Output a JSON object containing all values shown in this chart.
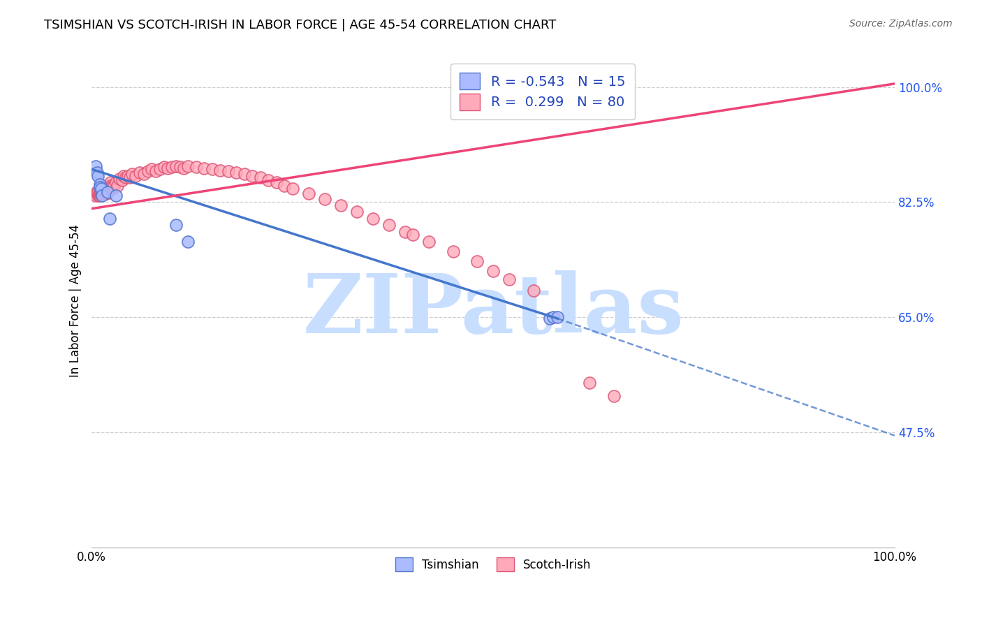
{
  "title": "TSIMSHIAN VS SCOTCH-IRISH IN LABOR FORCE | AGE 45-54 CORRELATION CHART",
  "source": "Source: ZipAtlas.com",
  "ylabel": "In Labor Force | Age 45-54",
  "yticks": [
    0.475,
    0.65,
    0.825,
    1.0
  ],
  "ytick_labels": [
    "47.5%",
    "65.0%",
    "82.5%",
    "100.0%"
  ],
  "xmin": 0.0,
  "xmax": 1.0,
  "ymin": 0.3,
  "ymax": 1.05,
  "tsimshian_R": -0.543,
  "tsimshian_N": 15,
  "scotchirish_R": 0.299,
  "scotchirish_N": 80,
  "tsimshian_color": "#aabbff",
  "scotchirish_color": "#ffaabb",
  "tsimshian_edge_color": "#5577cc",
  "scotchirish_edge_color": "#dd5577",
  "tsimshian_line_color": "#4477cc",
  "scotchirish_line_color": "#ee4477",
  "watermark_color": "#c8deff",
  "tsimshian_x": [
    0.005,
    0.007,
    0.008,
    0.01,
    0.01,
    0.012,
    0.013,
    0.02,
    0.022,
    0.03,
    0.105,
    0.12,
    0.57,
    0.575,
    0.58
  ],
  "tsimshian_y": [
    0.88,
    0.87,
    0.865,
    0.852,
    0.848,
    0.845,
    0.835,
    0.84,
    0.8,
    0.835,
    0.79,
    0.765,
    0.648,
    0.65,
    0.65
  ],
  "blue_line_x0": 0.0,
  "blue_line_y0": 0.875,
  "blue_line_x1": 0.58,
  "blue_line_y1": 0.648,
  "blue_line_x2": 1.0,
  "blue_line_y2": 0.47,
  "pink_line_x0": 0.0,
  "pink_line_y0": 0.815,
  "pink_line_x1": 1.0,
  "pink_line_y1": 1.005,
  "scotchirish_x": [
    0.005,
    0.006,
    0.007,
    0.008,
    0.008,
    0.009,
    0.009,
    0.01,
    0.01,
    0.01,
    0.011,
    0.012,
    0.013,
    0.013,
    0.014,
    0.015,
    0.015,
    0.016,
    0.017,
    0.018,
    0.019,
    0.02,
    0.022,
    0.023,
    0.024,
    0.025,
    0.026,
    0.028,
    0.03,
    0.032,
    0.035,
    0.038,
    0.04,
    0.042,
    0.045,
    0.048,
    0.05,
    0.055,
    0.06,
    0.065,
    0.07,
    0.075,
    0.08,
    0.085,
    0.09,
    0.095,
    0.1,
    0.105,
    0.11,
    0.115,
    0.12,
    0.13,
    0.14,
    0.15,
    0.16,
    0.17,
    0.18,
    0.19,
    0.2,
    0.21,
    0.22,
    0.23,
    0.24,
    0.25,
    0.27,
    0.29,
    0.31,
    0.33,
    0.35,
    0.37,
    0.39,
    0.4,
    0.42,
    0.45,
    0.48,
    0.5,
    0.52,
    0.55,
    0.62,
    0.65
  ],
  "scotchirish_y": [
    0.835,
    0.84,
    0.838,
    0.836,
    0.84,
    0.835,
    0.838,
    0.835,
    0.838,
    0.84,
    0.838,
    0.837,
    0.84,
    0.842,
    0.838,
    0.842,
    0.845,
    0.84,
    0.85,
    0.845,
    0.838,
    0.842,
    0.85,
    0.855,
    0.85,
    0.848,
    0.845,
    0.85,
    0.855,
    0.85,
    0.86,
    0.858,
    0.865,
    0.862,
    0.865,
    0.862,
    0.868,
    0.865,
    0.87,
    0.868,
    0.872,
    0.875,
    0.872,
    0.875,
    0.878,
    0.876,
    0.878,
    0.88,
    0.878,
    0.876,
    0.88,
    0.878,
    0.876,
    0.875,
    0.873,
    0.872,
    0.87,
    0.868,
    0.865,
    0.862,
    0.858,
    0.855,
    0.85,
    0.845,
    0.838,
    0.83,
    0.82,
    0.81,
    0.8,
    0.79,
    0.78,
    0.775,
    0.765,
    0.75,
    0.735,
    0.72,
    0.708,
    0.69,
    0.55,
    0.53
  ]
}
